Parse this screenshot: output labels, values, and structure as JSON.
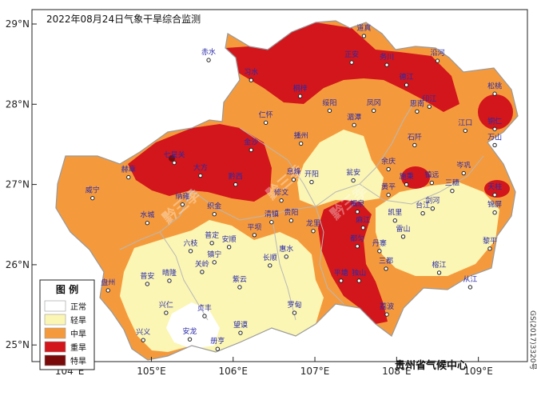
{
  "title": "2022年08月24日气象干旱综合监测",
  "agency": "贵州省气候中心",
  "map_code": "GS(2017)3320号",
  "watermark": "黔三季",
  "axes": {
    "lat_labels": [
      "29°N",
      "28°N",
      "27°N",
      "26°N",
      "25°N"
    ],
    "lon_labels": [
      "104°E",
      "105°E",
      "106°E",
      "107°E",
      "108°E",
      "109°E"
    ]
  },
  "legend": {
    "title": "图 例",
    "items": [
      {
        "label": "正常",
        "color": "#ffffff"
      },
      {
        "label": "轻旱",
        "color": "#fbf6b4"
      },
      {
        "label": "中旱",
        "color": "#f59a3c"
      },
      {
        "label": "重旱",
        "color": "#d2161c"
      },
      {
        "label": "特旱",
        "color": "#7a0a0a"
      }
    ]
  },
  "colors": {
    "normal": "#ffffff",
    "light": "#fbf6b4",
    "moderate": "#f59a3c",
    "severe": "#d2161c",
    "extreme": "#7a0a0a",
    "border": "#b8b8b8"
  },
  "cities": [
    {
      "name": "道真",
      "lon": 107.6,
      "lat": 28.88
    },
    {
      "name": "赤水",
      "lon": 105.7,
      "lat": 28.58
    },
    {
      "name": "正安",
      "lon": 107.45,
      "lat": 28.55
    },
    {
      "name": "务川",
      "lon": 107.88,
      "lat": 28.52
    },
    {
      "name": "沿河",
      "lon": 108.5,
      "lat": 28.57
    },
    {
      "name": "习水",
      "lon": 106.22,
      "lat": 28.33
    },
    {
      "name": "桐梓",
      "lon": 106.82,
      "lat": 28.13
    },
    {
      "name": "德江",
      "lon": 108.12,
      "lat": 28.27
    },
    {
      "name": "印江",
      "lon": 108.4,
      "lat": 28.0
    },
    {
      "name": "松桃",
      "lon": 109.2,
      "lat": 28.16
    },
    {
      "name": "仁怀",
      "lon": 106.4,
      "lat": 27.8
    },
    {
      "name": "绥阳",
      "lon": 107.18,
      "lat": 27.95
    },
    {
      "name": "凤冈",
      "lon": 107.72,
      "lat": 27.95
    },
    {
      "name": "思南",
      "lon": 108.25,
      "lat": 27.94
    },
    {
      "name": "湄潭",
      "lon": 107.48,
      "lat": 27.77
    },
    {
      "name": "江口",
      "lon": 108.84,
      "lat": 27.7
    },
    {
      "name": "铜仁",
      "lon": 109.2,
      "lat": 27.72
    },
    {
      "name": "播州",
      "lon": 106.83,
      "lat": 27.54
    },
    {
      "name": "石阡",
      "lon": 108.22,
      "lat": 27.52
    },
    {
      "name": "万山",
      "lon": 109.2,
      "lat": 27.52
    },
    {
      "name": "金沙",
      "lon": 106.22,
      "lat": 27.46
    },
    {
      "name": "七星关",
      "lon": 105.28,
      "lat": 27.3
    },
    {
      "name": "大方",
      "lon": 105.6,
      "lat": 27.14
    },
    {
      "name": "黔西",
      "lon": 106.03,
      "lat": 27.03
    },
    {
      "name": "息烽",
      "lon": 106.74,
      "lat": 27.09
    },
    {
      "name": "开阳",
      "lon": 106.96,
      "lat": 27.06
    },
    {
      "name": "瓮安",
      "lon": 107.47,
      "lat": 27.08
    },
    {
      "name": "余庆",
      "lon": 107.9,
      "lat": 27.22
    },
    {
      "name": "施秉",
      "lon": 108.12,
      "lat": 27.03
    },
    {
      "name": "镇远",
      "lon": 108.43,
      "lat": 27.05
    },
    {
      "name": "岑巩",
      "lon": 108.82,
      "lat": 27.17
    },
    {
      "name": "三穗",
      "lon": 108.68,
      "lat": 26.95
    },
    {
      "name": "天柱",
      "lon": 109.2,
      "lat": 26.9
    },
    {
      "name": "赫章",
      "lon": 104.72,
      "lat": 27.12
    },
    {
      "name": "威宁",
      "lon": 104.28,
      "lat": 26.86
    },
    {
      "name": "纳雍",
      "lon": 105.38,
      "lat": 26.78
    },
    {
      "name": "织金",
      "lon": 105.77,
      "lat": 26.66
    },
    {
      "name": "修文",
      "lon": 106.59,
      "lat": 26.83
    },
    {
      "name": "清镇",
      "lon": 106.47,
      "lat": 26.56
    },
    {
      "name": "贵阳",
      "lon": 106.71,
      "lat": 26.58
    },
    {
      "name": "龙里",
      "lon": 106.98,
      "lat": 26.45
    },
    {
      "name": "福泉",
      "lon": 107.52,
      "lat": 26.69
    },
    {
      "name": "黄平",
      "lon": 107.9,
      "lat": 26.9
    },
    {
      "name": "凯里",
      "lon": 107.98,
      "lat": 26.58
    },
    {
      "name": "台江",
      "lon": 108.32,
      "lat": 26.67
    },
    {
      "name": "剑河",
      "lon": 108.44,
      "lat": 26.73
    },
    {
      "name": "锦屏",
      "lon": 109.2,
      "lat": 26.68
    },
    {
      "name": "雷山",
      "lon": 108.08,
      "lat": 26.38
    },
    {
      "name": "丹寨",
      "lon": 107.79,
      "lat": 26.2
    },
    {
      "name": "麻江",
      "lon": 107.59,
      "lat": 26.49
    },
    {
      "name": "水城",
      "lon": 104.95,
      "lat": 26.55
    },
    {
      "name": "平坝",
      "lon": 106.26,
      "lat": 26.4
    },
    {
      "name": "普定",
      "lon": 105.74,
      "lat": 26.3
    },
    {
      "name": "安顺",
      "lon": 105.95,
      "lat": 26.25
    },
    {
      "name": "六枝",
      "lon": 105.48,
      "lat": 26.2
    },
    {
      "name": "惠水",
      "lon": 106.65,
      "lat": 26.13
    },
    {
      "name": "长顺",
      "lon": 106.45,
      "lat": 26.02
    },
    {
      "name": "镇宁",
      "lon": 105.77,
      "lat": 26.06
    },
    {
      "name": "关岭",
      "lon": 105.62,
      "lat": 25.94
    },
    {
      "name": "黎平",
      "lon": 109.14,
      "lat": 26.23
    },
    {
      "name": "三都",
      "lon": 107.87,
      "lat": 25.98
    },
    {
      "name": "都匀",
      "lon": 107.52,
      "lat": 26.26
    },
    {
      "name": "平塘",
      "lon": 107.32,
      "lat": 25.83
    },
    {
      "name": "独山",
      "lon": 107.54,
      "lat": 25.83
    },
    {
      "name": "榕江",
      "lon": 108.52,
      "lat": 25.93
    },
    {
      "name": "从江",
      "lon": 108.9,
      "lat": 25.75
    },
    {
      "name": "盘州",
      "lon": 104.47,
      "lat": 25.71
    },
    {
      "name": "普安",
      "lon": 104.95,
      "lat": 25.79
    },
    {
      "name": "晴隆",
      "lon": 105.22,
      "lat": 25.83
    },
    {
      "name": "紫云",
      "lon": 106.08,
      "lat": 25.75
    },
    {
      "name": "罗甸",
      "lon": 106.75,
      "lat": 25.43
    },
    {
      "name": "荔波",
      "lon": 107.88,
      "lat": 25.41
    },
    {
      "name": "兴仁",
      "lon": 105.18,
      "lat": 25.43
    },
    {
      "name": "贞丰",
      "lon": 105.65,
      "lat": 25.39
    },
    {
      "name": "兴义",
      "lon": 104.9,
      "lat": 25.09
    },
    {
      "name": "安龙",
      "lon": 105.47,
      "lat": 25.1
    },
    {
      "name": "望谟",
      "lon": 106.09,
      "lat": 25.18
    },
    {
      "name": "册亨",
      "lon": 105.81,
      "lat": 24.98
    }
  ]
}
